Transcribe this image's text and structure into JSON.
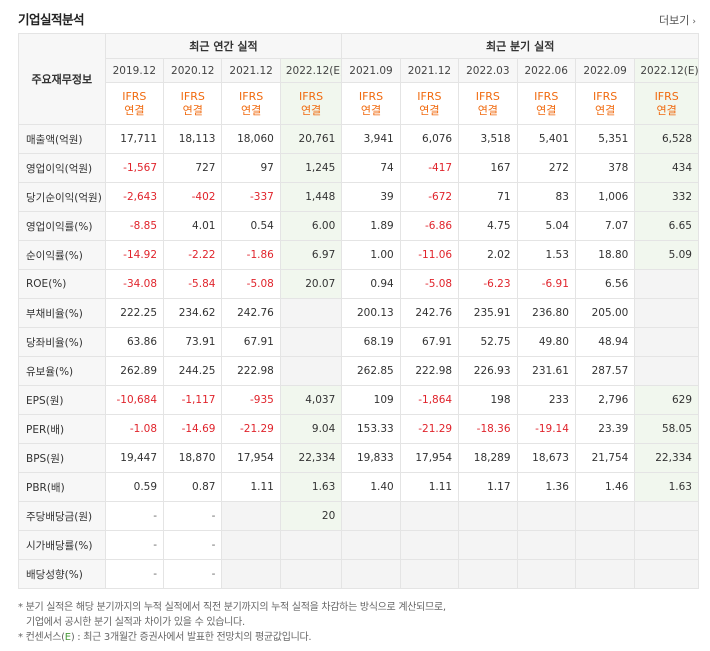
{
  "header": {
    "title": "기업실적분석",
    "more": "더보기",
    "more_arrow": "›"
  },
  "table": {
    "row_header": "주요재무정보",
    "group_annual": "최근 연간 실적",
    "group_quarter": "최근 분기 실적",
    "periods": [
      "2019.12",
      "2020.12",
      "2021.12",
      "2022.12(E)",
      "2021.09",
      "2021.12",
      "2022.03",
      "2022.06",
      "2022.09",
      "2022.12(E)"
    ],
    "ifrs_top": "IFRS",
    "ifrs_bottom": "연결",
    "rows": [
      {
        "label": "매출액(억원)",
        "values": [
          "17,711",
          "18,113",
          "18,060",
          "20,761",
          "3,941",
          "6,076",
          "3,518",
          "5,401",
          "5,351",
          "6,528"
        ]
      },
      {
        "label": "영업이익(억원)",
        "values": [
          "-1,567",
          "727",
          "97",
          "1,245",
          "74",
          "-417",
          "167",
          "272",
          "378",
          "434"
        ]
      },
      {
        "label": "당기순이익(억원)",
        "values": [
          "-2,643",
          "-402",
          "-337",
          "1,448",
          "39",
          "-672",
          "71",
          "83",
          "1,006",
          "332"
        ]
      },
      {
        "label": "영업이익률(%)",
        "values": [
          "-8.85",
          "4.01",
          "0.54",
          "6.00",
          "1.89",
          "-6.86",
          "4.75",
          "5.04",
          "7.07",
          "6.65"
        ]
      },
      {
        "label": "순이익률(%)",
        "values": [
          "-14.92",
          "-2.22",
          "-1.86",
          "6.97",
          "1.00",
          "-11.06",
          "2.02",
          "1.53",
          "18.80",
          "5.09"
        ]
      },
      {
        "label": "ROE(%)",
        "values": [
          "-34.08",
          "-5.84",
          "-5.08",
          "20.07",
          "0.94",
          "-5.08",
          "-6.23",
          "-6.91",
          "6.56",
          ""
        ]
      },
      {
        "label": "부채비율(%)",
        "values": [
          "222.25",
          "234.62",
          "242.76",
          "",
          "200.13",
          "242.76",
          "235.91",
          "236.80",
          "205.00",
          ""
        ]
      },
      {
        "label": "당좌비율(%)",
        "values": [
          "63.86",
          "73.91",
          "67.91",
          "",
          "68.19",
          "67.91",
          "52.75",
          "49.80",
          "48.94",
          ""
        ]
      },
      {
        "label": "유보율(%)",
        "values": [
          "262.89",
          "244.25",
          "222.98",
          "",
          "262.85",
          "222.98",
          "226.93",
          "231.61",
          "287.57",
          ""
        ]
      },
      {
        "label": "EPS(원)",
        "values": [
          "-10,684",
          "-1,117",
          "-935",
          "4,037",
          "109",
          "-1,864",
          "198",
          "233",
          "2,796",
          "629"
        ]
      },
      {
        "label": "PER(배)",
        "values": [
          "-1.08",
          "-14.69",
          "-21.29",
          "9.04",
          "153.33",
          "-21.29",
          "-18.36",
          "-19.14",
          "23.39",
          "58.05"
        ]
      },
      {
        "label": "BPS(원)",
        "values": [
          "19,447",
          "18,870",
          "17,954",
          "22,334",
          "19,833",
          "17,954",
          "18,289",
          "18,673",
          "21,754",
          "22,334"
        ]
      },
      {
        "label": "PBR(배)",
        "values": [
          "0.59",
          "0.87",
          "1.11",
          "1.63",
          "1.40",
          "1.11",
          "1.17",
          "1.36",
          "1.46",
          "1.63"
        ]
      },
      {
        "label": "주당배당금(원)",
        "values": [
          "-",
          "-",
          "",
          "20",
          "",
          "",
          "",
          "",
          "",
          ""
        ]
      },
      {
        "label": "시가배당률(%)",
        "values": [
          "-",
          "-",
          "",
          "",
          "",
          "",
          "",
          "",
          "",
          ""
        ]
      },
      {
        "label": "배당성향(%)",
        "values": [
          "-",
          "-",
          "",
          "",
          "",
          "",
          "",
          "",
          "",
          ""
        ]
      }
    ]
  },
  "notes": {
    "line1": "* 분기 실적은 해당 분기까지의 누적 실적에서 직전 분기까지의 누적 실적을 차감하는 방식으로 계산되므로,",
    "line2": "기업에서 공시한 분기 실적과 차이가 있을 수 있습니다.",
    "line3_pre": "* 컨센서스(",
    "line3_e": "E",
    "line3_post": ") : 최근 3개월간 증권사에서 발표한 전망치의 평균값입니다."
  },
  "colors": {
    "negative": "#e0242c",
    "ifrs": "#f06a0f",
    "estimate_bg": "#f1f7ee",
    "estimate_e": "#4a9a3a"
  }
}
